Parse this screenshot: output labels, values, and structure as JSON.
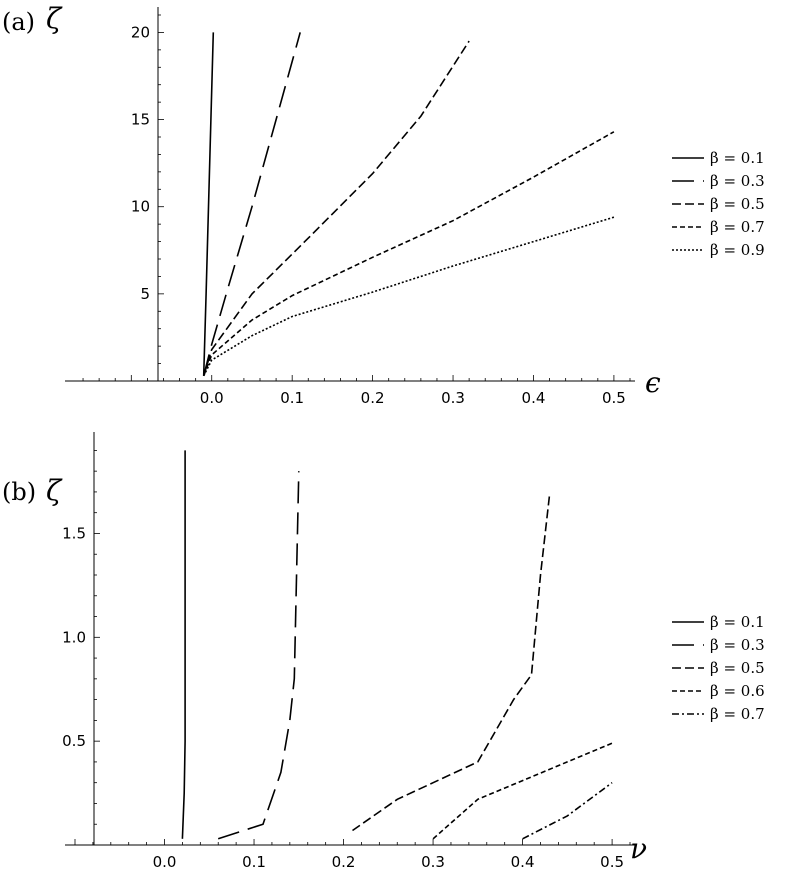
{
  "chart_data": [
    {
      "panel_label": "(a)",
      "type": "line",
      "xlabel": "ϵ",
      "ylabel": "ζ",
      "xlim": [
        -0.17,
        0.52
      ],
      "ylim": [
        0,
        21
      ],
      "xticks": [
        0.0,
        0.1,
        0.2,
        0.3,
        0.4,
        0.5
      ],
      "xtick_labels": [
        "0.0",
        "0.1",
        "0.2",
        "0.3",
        "0.4",
        "0.5"
      ],
      "yticks": [
        5,
        10,
        15,
        20
      ],
      "ytick_labels": [
        "5",
        "10",
        "15",
        "20"
      ],
      "legend_position": "right",
      "series": [
        {
          "name": "β = 0.1",
          "dash": "solid",
          "points": [
            [
              -0.01,
              0.3
            ],
            [
              -0.007,
              5
            ],
            [
              -0.004,
              10
            ],
            [
              -0.001,
              15
            ],
            [
              0.002,
              20
            ]
          ]
        },
        {
          "name": "β = 0.3",
          "dash": "long",
          "points": [
            [
              -0.01,
              0.3
            ],
            [
              0.0,
              2.1
            ],
            [
              0.02,
              5.3
            ],
            [
              0.05,
              10
            ],
            [
              0.08,
              15
            ],
            [
              0.11,
              20
            ]
          ]
        },
        {
          "name": "β = 0.5",
          "dash": "medium",
          "points": [
            [
              -0.01,
              0.3
            ],
            [
              0.0,
              1.8
            ],
            [
              0.05,
              5
            ],
            [
              0.12,
              8.2
            ],
            [
              0.2,
              11.9
            ],
            [
              0.26,
              15.2
            ],
            [
              0.32,
              19.5
            ]
          ]
        },
        {
          "name": "β = 0.7",
          "dash": "short",
          "points": [
            [
              -0.01,
              0.3
            ],
            [
              0.0,
              1.5
            ],
            [
              0.05,
              3.5
            ],
            [
              0.1,
              4.9
            ],
            [
              0.2,
              7.1
            ],
            [
              0.3,
              9.2
            ],
            [
              0.4,
              11.7
            ],
            [
              0.5,
              14.3
            ]
          ]
        },
        {
          "name": "β = 0.9",
          "dash": "dotted",
          "points": [
            [
              -0.01,
              0.3
            ],
            [
              0.0,
              1.2
            ],
            [
              0.05,
              2.6
            ],
            [
              0.1,
              3.7
            ],
            [
              0.2,
              5.1
            ],
            [
              0.3,
              6.6
            ],
            [
              0.4,
              8
            ],
            [
              0.5,
              9.4
            ]
          ]
        }
      ]
    },
    {
      "panel_label": "(b)",
      "type": "line",
      "xlabel": "ν",
      "ylabel": "ζ",
      "xlim": [
        -0.1,
        0.52
      ],
      "ylim": [
        0,
        1.95
      ],
      "xticks": [
        0.0,
        0.1,
        0.2,
        0.3,
        0.4,
        0.5
      ],
      "xtick_labels": [
        "0.0",
        "0.1",
        "0.2",
        "0.3",
        "0.4",
        "0.5"
      ],
      "yticks": [
        0.5,
        1.0,
        1.5
      ],
      "ytick_labels": [
        "0.5",
        "1.0",
        "1.5"
      ],
      "legend_position": "right",
      "series": [
        {
          "name": "β = 0.1",
          "dash": "solid",
          "points": [
            [
              0.02,
              0.03
            ],
            [
              0.022,
              0.25
            ],
            [
              0.023,
              0.5
            ],
            [
              0.023,
              1.0
            ],
            [
              0.023,
              1.5
            ],
            [
              0.023,
              1.9
            ]
          ]
        },
        {
          "name": "β = 0.3",
          "dash": "long",
          "points": [
            [
              0.06,
              0.03
            ],
            [
              0.11,
              0.1
            ],
            [
              0.13,
              0.35
            ],
            [
              0.14,
              0.6
            ],
            [
              0.145,
              0.8
            ],
            [
              0.147,
              1.2
            ],
            [
              0.15,
              1.8
            ]
          ]
        },
        {
          "name": "β = 0.5",
          "dash": "medium",
          "points": [
            [
              0.21,
              0.07
            ],
            [
              0.26,
              0.22
            ],
            [
              0.3,
              0.3
            ],
            [
              0.35,
              0.4
            ],
            [
              0.37,
              0.55
            ],
            [
              0.39,
              0.7
            ],
            [
              0.41,
              0.82
            ],
            [
              0.42,
              1.3
            ],
            [
              0.43,
              1.68
            ]
          ]
        },
        {
          "name": "β = 0.6",
          "dash": "short",
          "points": [
            [
              0.3,
              0.03
            ],
            [
              0.35,
              0.22
            ],
            [
              0.4,
              0.31
            ],
            [
              0.45,
              0.4
            ],
            [
              0.5,
              0.49
            ]
          ]
        },
        {
          "name": "β = 0.7",
          "dash": "dashdot",
          "points": [
            [
              0.4,
              0.03
            ],
            [
              0.45,
              0.14
            ],
            [
              0.5,
              0.3
            ]
          ]
        }
      ]
    }
  ]
}
